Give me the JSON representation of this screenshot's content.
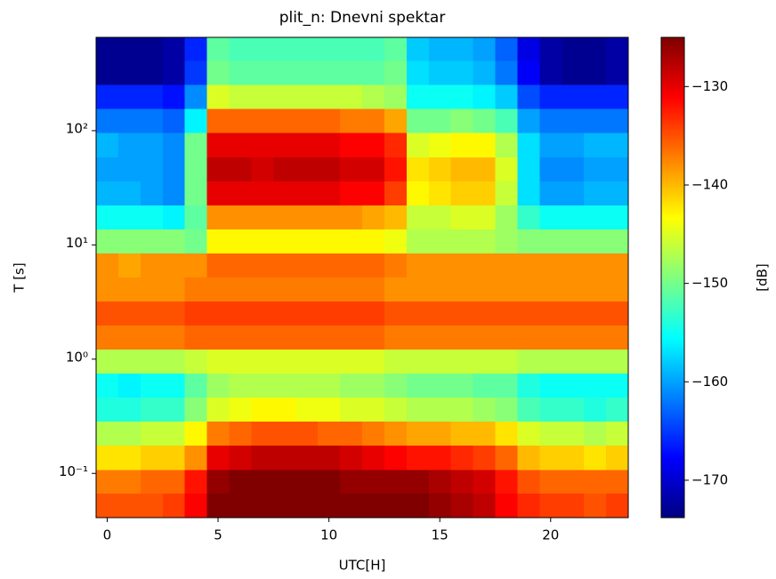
{
  "chart_data": {
    "type": "heatmap",
    "title": "plit_n: Dnevni spektar",
    "xlabel": "UTC[H]",
    "ylabel": "T [s]",
    "x": [
      0,
      1,
      2,
      3,
      4,
      5,
      6,
      7,
      8,
      9,
      10,
      11,
      12,
      13,
      14,
      15,
      16,
      17,
      18,
      19,
      20,
      21,
      22,
      23
    ],
    "y_edges": [
      0.041,
      0.067,
      0.108,
      0.176,
      0.285,
      0.463,
      0.752,
      1.22,
      1.98,
      3.22,
      5.22,
      8.48,
      13.8,
      22.4,
      36.3,
      59,
      95.8,
      156,
      253,
      410,
      656
    ],
    "z": [
      [
        -135,
        -135,
        -135,
        -134,
        -131,
        -125,
        -125,
        -125,
        -125,
        -125,
        -125,
        -125,
        -125,
        -125,
        -125,
        -126,
        -127,
        -128,
        -131,
        -133,
        -134,
        -134,
        -135,
        -134
      ],
      [
        -137,
        -137,
        -136,
        -136,
        -132,
        -126,
        -125,
        -125,
        -125,
        -125,
        -125,
        -126,
        -126,
        -126,
        -126,
        -127,
        -128,
        -129,
        -132,
        -135,
        -136,
        -136,
        -136,
        -136
      ],
      [
        -142,
        -142,
        -141,
        -141,
        -138,
        -130,
        -129,
        -128,
        -128,
        -128,
        -128,
        -129,
        -130,
        -131,
        -132,
        -132,
        -133,
        -134,
        -136,
        -140,
        -141,
        -141,
        -142,
        -141
      ],
      [
        -147,
        -147,
        -146,
        -146,
        -143,
        -137,
        -136,
        -135,
        -135,
        -135,
        -136,
        -136,
        -137,
        -138,
        -139,
        -139,
        -140,
        -140,
        -142,
        -145,
        -146,
        -146,
        -147,
        -146
      ],
      [
        -154,
        -154,
        -153,
        -153,
        -149,
        -145,
        -144,
        -143,
        -143,
        -144,
        -144,
        -145,
        -145,
        -146,
        -147,
        -147,
        -147,
        -148,
        -149,
        -152,
        -153,
        -153,
        -154,
        -153
      ],
      [
        -155,
        -156,
        -155,
        -155,
        -151,
        -148,
        -147,
        -147,
        -147,
        -147,
        -147,
        -148,
        -148,
        -149,
        -150,
        -150,
        -150,
        -151,
        -151,
        -154,
        -155,
        -155,
        -155,
        -155
      ],
      [
        -147,
        -147,
        -147,
        -147,
        -146,
        -145,
        -145,
        -145,
        -145,
        -145,
        -145,
        -145,
        -145,
        -146,
        -146,
        -146,
        -146,
        -146,
        -146,
        -147,
        -147,
        -147,
        -147,
        -147
      ],
      [
        -137,
        -137,
        -137,
        -137,
        -136,
        -136,
        -136,
        -136,
        -136,
        -136,
        -136,
        -136,
        -136,
        -137,
        -137,
        -137,
        -137,
        -137,
        -137,
        -137,
        -137,
        -137,
        -137,
        -137
      ],
      [
        -135,
        -135,
        -135,
        -135,
        -134,
        -134,
        -134,
        -134,
        -134,
        -134,
        -134,
        -134,
        -134,
        -135,
        -135,
        -135,
        -135,
        -135,
        -135,
        -135,
        -135,
        -135,
        -135,
        -135
      ],
      [
        -138,
        -138,
        -138,
        -138,
        -137,
        -137,
        -137,
        -137,
        -137,
        -137,
        -137,
        -137,
        -137,
        -138,
        -138,
        -138,
        -138,
        -138,
        -138,
        -138,
        -138,
        -138,
        -138,
        -138
      ],
      [
        -138,
        -139,
        -138,
        -138,
        -138,
        -136,
        -136,
        -136,
        -136,
        -136,
        -136,
        -136,
        -136,
        -137,
        -138,
        -138,
        -138,
        -138,
        -138,
        -138,
        -138,
        -138,
        -138,
        -138
      ],
      [
        -149,
        -149,
        -149,
        -149,
        -150,
        -143,
        -143,
        -143,
        -143,
        -143,
        -143,
        -143,
        -143,
        -144,
        -147,
        -147,
        -147,
        -147,
        -148,
        -149,
        -149,
        -149,
        -149,
        -149
      ],
      [
        -155,
        -155,
        -155,
        -156,
        -151,
        -138,
        -138,
        -138,
        -138,
        -138,
        -138,
        -138,
        -139,
        -140,
        -146,
        -146,
        -145,
        -145,
        -148,
        -153,
        -155,
        -155,
        -155,
        -155
      ],
      [
        -159,
        -159,
        -160,
        -161,
        -150,
        -130,
        -130,
        -130,
        -130,
        -130,
        -130,
        -131,
        -131,
        -134,
        -143,
        -142,
        -141,
        -141,
        -146,
        -157,
        -160,
        -160,
        -159,
        -159
      ],
      [
        -160,
        -160,
        -160,
        -161,
        -150,
        -128,
        -128,
        -129,
        -128,
        -128,
        -128,
        -129,
        -129,
        -132,
        -142,
        -141,
        -140,
        -140,
        -145,
        -157,
        -161,
        -161,
        -160,
        -160
      ],
      [
        -159,
        -160,
        -160,
        -161,
        -150,
        -130,
        -130,
        -130,
        -130,
        -130,
        -130,
        -131,
        -131,
        -133,
        -145,
        -144,
        -143,
        -143,
        -147,
        -157,
        -160,
        -160,
        -159,
        -159
      ],
      [
        -162,
        -162,
        -162,
        -163,
        -156,
        -136,
        -136,
        -136,
        -136,
        -136,
        -136,
        -137,
        -137,
        -139,
        -150,
        -150,
        -149,
        -150,
        -152,
        -160,
        -162,
        -162,
        -162,
        -162
      ],
      [
        -166,
        -166,
        -166,
        -167,
        -161,
        -145,
        -146,
        -146,
        -146,
        -146,
        -146,
        -146,
        -147,
        -148,
        -155,
        -155,
        -155,
        -156,
        -158,
        -164,
        -166,
        -166,
        -166,
        -166
      ],
      [
        -173,
        -173,
        -173,
        -172,
        -165,
        -150,
        -151,
        -151,
        -151,
        -151,
        -151,
        -151,
        -151,
        -150,
        -157,
        -158,
        -158,
        -159,
        -162,
        -168,
        -172,
        -173,
        -173,
        -172
      ],
      [
        -173,
        -173,
        -173,
        -172,
        -166,
        -151,
        -152,
        -152,
        -152,
        -152,
        -152,
        -152,
        -152,
        -151,
        -158,
        -159,
        -159,
        -160,
        -163,
        -169,
        -172,
        -173,
        -173,
        -172
      ]
    ],
    "xlim": [
      -0.5,
      23.5
    ],
    "ylim": [
      0.041,
      656
    ],
    "yscale": "log",
    "xticks": [
      0,
      5,
      10,
      15,
      20
    ],
    "yticks": [
      {
        "value": 0.1,
        "label": "10⁻¹"
      },
      {
        "value": 1,
        "label": "10⁰"
      },
      {
        "value": 10,
        "label": "10¹"
      },
      {
        "value": 100,
        "label": "10²"
      }
    ],
    "colormap": "jet",
    "colorbar": {
      "label": "[dB]",
      "clim": [
        -173.8,
        -125
      ],
      "ticks": [
        {
          "value": -170,
          "label": "−170"
        },
        {
          "value": -160,
          "label": "−160"
        },
        {
          "value": -150,
          "label": "−150"
        },
        {
          "value": -140,
          "label": "−140"
        },
        {
          "value": -130,
          "label": "−130"
        }
      ]
    }
  }
}
